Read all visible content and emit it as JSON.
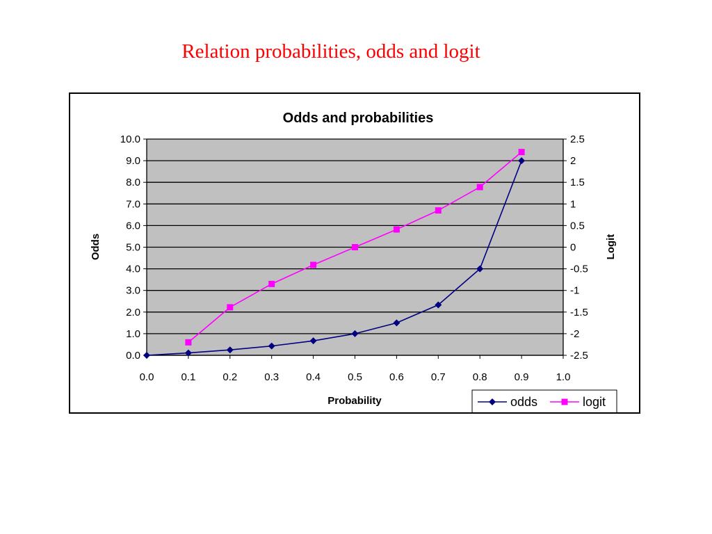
{
  "slide": {
    "title": "Relation probabilities, odds and logit"
  },
  "colors": {
    "odds": "#000080",
    "logit": "#ff00ff",
    "plot_area": "#c0c0c0",
    "title": "#ff0000"
  },
  "chart_data": {
    "type": "line",
    "title": "Odds and probabilities",
    "xlabel": "Probability",
    "ylabel": "Odds",
    "y2label": "Logit",
    "xlim": [
      0.0,
      1.0
    ],
    "ylim": [
      0.0,
      10.0
    ],
    "y2lim": [
      -2.5,
      2.5
    ],
    "x_ticks": [
      "0.0",
      "0.1",
      "0.2",
      "0.3",
      "0.4",
      "0.5",
      "0.6",
      "0.7",
      "0.8",
      "0.9",
      "1.0"
    ],
    "y_ticks": [
      "0.0",
      "1.0",
      "2.0",
      "3.0",
      "4.0",
      "5.0",
      "6.0",
      "7.0",
      "8.0",
      "9.0",
      "10.0"
    ],
    "y2_ticks": [
      "-2.5",
      "-2",
      "-1.5",
      "-1",
      "-0.5",
      "0",
      "0.5",
      "1",
      "1.5",
      "2",
      "2.5"
    ],
    "grid": true,
    "legend_position": "bottom-right",
    "series": [
      {
        "name": "odds",
        "axis": "left",
        "marker": "diamond",
        "x": [
          0.0,
          0.1,
          0.2,
          0.3,
          0.4,
          0.5,
          0.6,
          0.7,
          0.8,
          0.9
        ],
        "values": [
          0.0,
          0.11,
          0.25,
          0.43,
          0.67,
          1.0,
          1.5,
          2.33,
          4.0,
          9.0
        ]
      },
      {
        "name": "logit",
        "axis": "right",
        "marker": "square",
        "x": [
          0.1,
          0.2,
          0.3,
          0.4,
          0.5,
          0.6,
          0.7,
          0.8,
          0.9
        ],
        "values": [
          -2.2,
          -1.39,
          -0.85,
          -0.41,
          0.0,
          0.41,
          0.85,
          1.39,
          2.2
        ]
      }
    ]
  }
}
